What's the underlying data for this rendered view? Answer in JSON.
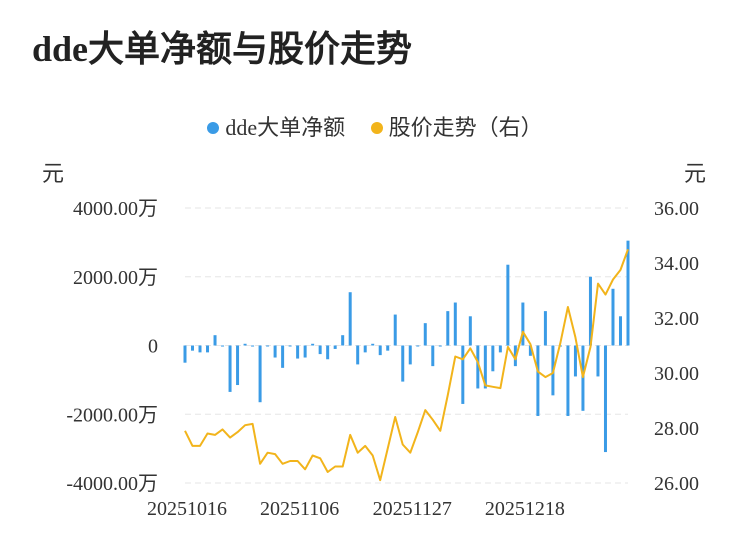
{
  "title": "dde大单净额与股价走势",
  "legend": [
    {
      "label": "dde大单净额",
      "color": "#3a9be6"
    },
    {
      "label": "股价走势（右）",
      "color": "#f2b41b"
    }
  ],
  "units": {
    "left": "元",
    "right": "元"
  },
  "chart_data": {
    "type": "bar+line",
    "y_left": {
      "ticks": [
        4000,
        2000,
        0,
        -2000,
        -4000
      ],
      "tick_labels": [
        "4000.00万",
        "2000.00万",
        "0",
        "-2000.00万",
        "-4000.00万"
      ],
      "range": [
        -4000,
        4000
      ]
    },
    "y_right": {
      "ticks": [
        36,
        34,
        32,
        30,
        28,
        26
      ],
      "tick_labels": [
        "36.00",
        "34.00",
        "32.00",
        "30.00",
        "28.00",
        "26.00"
      ],
      "range": [
        26,
        36
      ]
    },
    "x_tick_labels": [
      {
        "index": 0,
        "label": "20251016"
      },
      {
        "index": 15,
        "label": "20251106"
      },
      {
        "index": 30,
        "label": "20251127"
      },
      {
        "index": 45,
        "label": "20251218"
      }
    ],
    "grid": true,
    "series": [
      {
        "name": "dde大单净额",
        "type": "bar",
        "color": "#3a9be6",
        "values": [
          -500,
          -150,
          -200,
          -200,
          300,
          -30,
          -1350,
          -1150,
          50,
          -30,
          -1650,
          0,
          -350,
          -650,
          0,
          -380,
          -350,
          50,
          -250,
          -400,
          -100,
          300,
          1550,
          -550,
          -200,
          50,
          -280,
          -150,
          900,
          -1050,
          -550,
          0,
          650,
          -600,
          -30,
          1000,
          1250,
          -1700,
          850,
          -1250,
          -1250,
          -750,
          -200,
          2350,
          -600,
          1250,
          -300,
          -2050,
          1000,
          -1450,
          -30,
          -2050,
          -900,
          -1900,
          2000,
          -900,
          -3100,
          1650,
          850,
          3050
        ]
      },
      {
        "name": "股价走势（右）",
        "type": "line",
        "color": "#f2b41b",
        "values": [
          27.9,
          27.35,
          27.35,
          27.8,
          27.75,
          27.95,
          27.65,
          27.85,
          28.1,
          28.15,
          26.7,
          27.1,
          27.05,
          26.7,
          26.8,
          26.8,
          26.5,
          27.0,
          26.9,
          26.4,
          26.6,
          26.6,
          27.75,
          27.1,
          27.35,
          27.0,
          26.1,
          27.25,
          28.4,
          27.4,
          27.1,
          27.85,
          28.65,
          28.3,
          27.9,
          29.2,
          30.6,
          30.5,
          30.9,
          30.4,
          29.55,
          29.5,
          29.45,
          30.95,
          30.5,
          31.5,
          31.05,
          30.05,
          29.85,
          30.0,
          31.1,
          32.4,
          31.3,
          29.85,
          30.95,
          33.25,
          32.85,
          33.4,
          33.75,
          34.5
        ]
      }
    ]
  }
}
